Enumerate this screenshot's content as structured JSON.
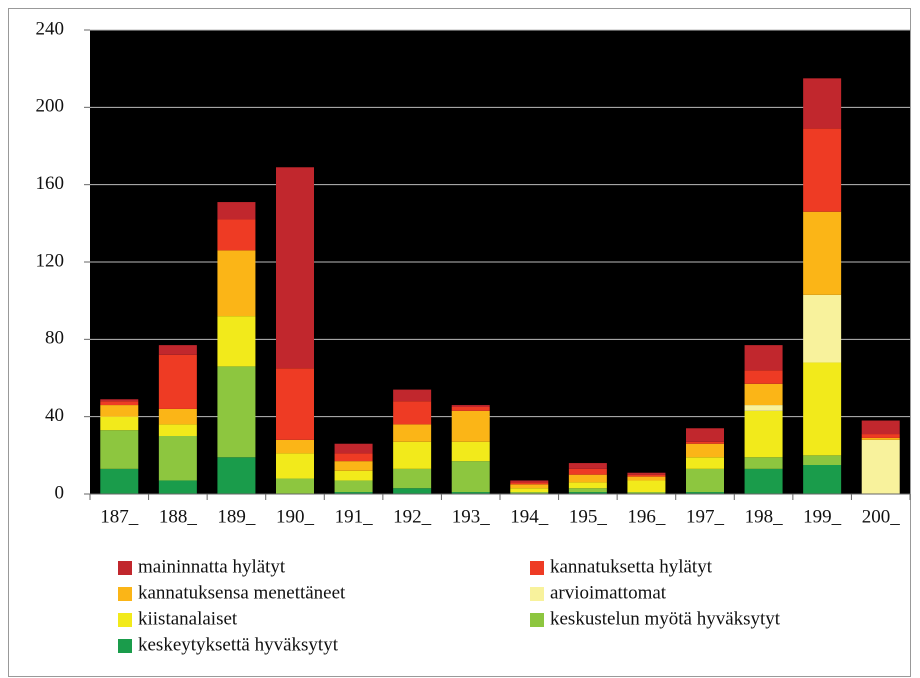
{
  "chart_data": {
    "type": "stacked_bar",
    "categories": [
      "187_",
      "188_",
      "189_",
      "190_",
      "191_",
      "192_",
      "193_",
      "194_",
      "195_",
      "196_",
      "197_",
      "198_",
      "199_",
      "200_"
    ],
    "series": [
      {
        "name": "maininnatta hylätyt",
        "color": "#c1272d",
        "values": [
          1,
          5,
          9,
          104,
          5,
          6,
          1,
          1,
          3,
          1,
          7,
          13,
          26,
          7
        ]
      },
      {
        "name": "kannatuksetta hylätyt",
        "color": "#ee3b24",
        "values": [
          2,
          28,
          16,
          37,
          4,
          12,
          2,
          1,
          3,
          1,
          1,
          7,
          43,
          2
        ]
      },
      {
        "name": "kannatuksensa menettäneet",
        "color": "#fbb517",
        "values": [
          6,
          8,
          34,
          7,
          5,
          9,
          16,
          2,
          4,
          2,
          7,
          11,
          43,
          1
        ]
      },
      {
        "name": "arvioimattomat",
        "color": "#f8f29c",
        "values": [
          0,
          0,
          0,
          0,
          0,
          0,
          0,
          0,
          0,
          0,
          0,
          3,
          35,
          28
        ]
      },
      {
        "name": "kiistanalaiset",
        "color": "#f2ea1b",
        "values": [
          7,
          6,
          26,
          13,
          5,
          14,
          10,
          2,
          3,
          6,
          6,
          24,
          48,
          0
        ]
      },
      {
        "name": "keskustelun myötä hyväksytyt",
        "color": "#8dc63f",
        "values": [
          20,
          23,
          47,
          8,
          6,
          10,
          16,
          1,
          2,
          1,
          12,
          6,
          5,
          0
        ]
      },
      {
        "name": "keskeytyksettä hyväksytyt",
        "color": "#1a9c4b",
        "values": [
          13,
          7,
          19,
          0,
          1,
          3,
          1,
          0,
          1,
          0,
          1,
          13,
          15,
          0
        ]
      }
    ],
    "ylim": [
      0,
      240
    ],
    "yticks": [
      0,
      40,
      80,
      120,
      160,
      200,
      240
    ],
    "grid": true,
    "background": "#000000"
  }
}
